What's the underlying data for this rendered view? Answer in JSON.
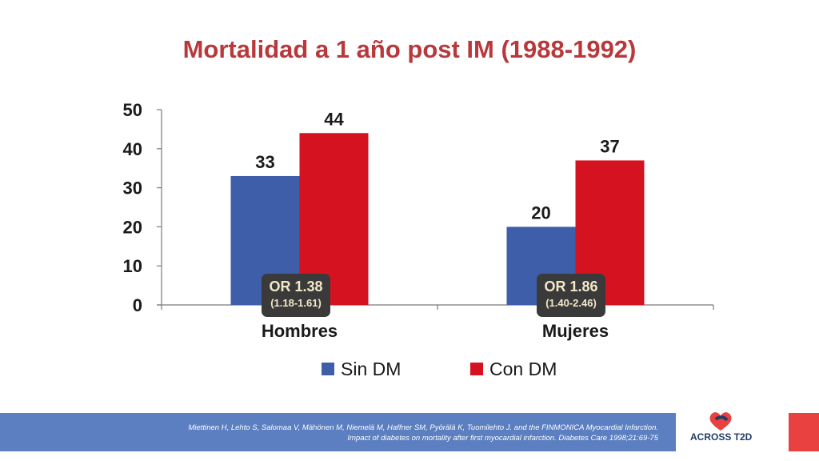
{
  "title": "Mortalidad a 1 año post IM (1988-1992)",
  "colors": {
    "sin_dm": "#3e5ea9",
    "con_dm": "#d5121f",
    "title": "#b8383b",
    "footer": "#5b7fc0"
  },
  "chart_data": {
    "type": "bar",
    "title": "Mortalidad a 1 año post IM (1988-1992)",
    "categories": [
      "Hombres",
      "Mujeres"
    ],
    "series": [
      {
        "name": "Sin DM",
        "values": [
          33,
          20
        ],
        "color": "#3e5ea9"
      },
      {
        "name": "Con DM",
        "values": [
          44,
          37
        ],
        "color": "#d5121f"
      }
    ],
    "ylim": [
      0,
      50
    ],
    "yticks": [
      0,
      10,
      20,
      30,
      40,
      50
    ],
    "xlabel": "",
    "ylabel": "",
    "legend": "bottom",
    "grid": false
  },
  "odds_ratios": [
    {
      "label": "OR 1.38",
      "ci": "(1.18-1.61)"
    },
    {
      "label": "OR 1.86",
      "ci": "(1.40-2.46)"
    }
  ],
  "legend": {
    "sin": "Sin DM",
    "con": "Con DM"
  },
  "citation": {
    "line1": "Miettinen H, Lehto S, Salomaa V, Mähönen M, Niemelä M, Haffner SM, Pyörälä K, Tuomilehto J. and the FINMONICA Myocardial Infarction.",
    "line2": "Impact of diabetes on mortality after first myocardial infarction. Diabetes Care 1998;21:69-75"
  },
  "logo": {
    "word": "ACROSS T2D",
    "icon": "heart-logo-icon"
  }
}
